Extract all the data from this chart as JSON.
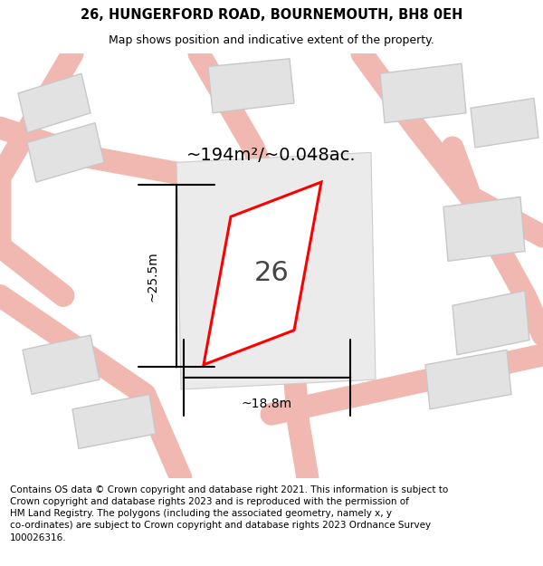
{
  "title": "26, HUNGERFORD ROAD, BOURNEMOUTH, BH8 0EH",
  "subtitle": "Map shows position and indicative extent of the property.",
  "footer": "Contains OS data © Crown copyright and database right 2021. This information is subject to\nCrown copyright and database rights 2023 and is reproduced with the permission of\nHM Land Registry. The polygons (including the associated geometry, namely x, y\nco-ordinates) are subject to Crown copyright and database rights 2023 Ordnance Survey\n100026316.",
  "area_label": "~194m²/~0.048ac.",
  "width_label": "~18.8m",
  "height_label": "~25.5m",
  "number_label": "26",
  "map_bg": "#efefef",
  "road_color": "#f0b8b0",
  "building_color": "#e2e2e2",
  "building_edge": "#c8c8c8",
  "plot_edge": "#ff0000",
  "title_fontsize": 10.5,
  "subtitle_fontsize": 9,
  "area_fontsize": 14,
  "dim_fontsize": 10,
  "number_fontsize": 22,
  "footer_fontsize": 7.5
}
